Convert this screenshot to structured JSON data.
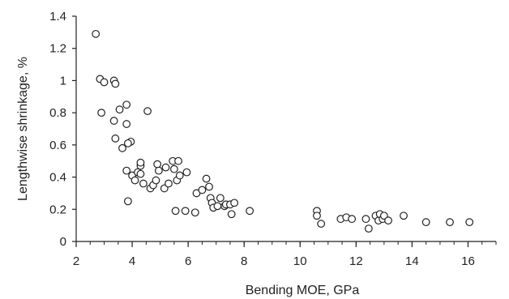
{
  "chart_data": {
    "type": "scatter",
    "title": "",
    "xlabel": "Bending MOE, GPa",
    "ylabel": "Lengthwise shrinkage, %",
    "xlim": [
      2,
      17
    ],
    "ylim": [
      0,
      1.4
    ],
    "xticks": [
      2,
      4,
      6,
      8,
      10,
      12,
      14,
      16
    ],
    "xtick_labels": [
      "2",
      "4",
      "6",
      "8",
      "10",
      "12",
      "14",
      "16"
    ],
    "xminor_step": 0.5,
    "yticks": [
      0,
      0.2,
      0.4,
      0.6,
      0.8,
      1,
      1.2,
      1.4
    ],
    "ytick_labels": [
      "0",
      "0.2",
      "0.4",
      "0.6",
      "0.8",
      "1",
      "1.2",
      "1.4"
    ],
    "grid": false,
    "legend": false,
    "marker": "open-circle",
    "marker_color": "#222222",
    "series": [
      {
        "points": [
          [
            2.7,
            1.29
          ],
          [
            2.85,
            1.01
          ],
          [
            3.0,
            0.99
          ],
          [
            2.9,
            0.8
          ],
          [
            3.35,
            1.0
          ],
          [
            3.4,
            0.98
          ],
          [
            3.35,
            0.75
          ],
          [
            3.55,
            0.82
          ],
          [
            3.8,
            0.85
          ],
          [
            3.4,
            0.64
          ],
          [
            3.65,
            0.58
          ],
          [
            3.8,
            0.73
          ],
          [
            3.95,
            0.62
          ],
          [
            3.85,
            0.61
          ],
          [
            4.55,
            0.81
          ],
          [
            3.8,
            0.44
          ],
          [
            4.0,
            0.41
          ],
          [
            4.3,
            0.47
          ],
          [
            4.3,
            0.49
          ],
          [
            4.2,
            0.43
          ],
          [
            4.4,
            0.36
          ],
          [
            4.3,
            0.42
          ],
          [
            4.1,
            0.38
          ],
          [
            3.85,
            0.25
          ],
          [
            4.65,
            0.33
          ],
          [
            4.75,
            0.35
          ],
          [
            4.85,
            0.38
          ],
          [
            4.9,
            0.48
          ],
          [
            4.95,
            0.44
          ],
          [
            5.15,
            0.33
          ],
          [
            5.2,
            0.46
          ],
          [
            5.3,
            0.36
          ],
          [
            5.45,
            0.5
          ],
          [
            5.5,
            0.45
          ],
          [
            5.6,
            0.38
          ],
          [
            5.7,
            0.41
          ],
          [
            5.65,
            0.5
          ],
          [
            5.95,
            0.43
          ],
          [
            5.55,
            0.19
          ],
          [
            5.9,
            0.19
          ],
          [
            6.25,
            0.18
          ],
          [
            6.3,
            0.3
          ],
          [
            6.5,
            0.32
          ],
          [
            6.65,
            0.39
          ],
          [
            6.75,
            0.34
          ],
          [
            6.8,
            0.27
          ],
          [
            6.85,
            0.24
          ],
          [
            6.9,
            0.21
          ],
          [
            7.05,
            0.22
          ],
          [
            7.15,
            0.27
          ],
          [
            7.3,
            0.22
          ],
          [
            7.35,
            0.23
          ],
          [
            7.5,
            0.23
          ],
          [
            7.55,
            0.17
          ],
          [
            7.65,
            0.24
          ],
          [
            8.2,
            0.19
          ],
          [
            10.6,
            0.19
          ],
          [
            10.6,
            0.16
          ],
          [
            10.75,
            0.11
          ],
          [
            11.45,
            0.14
          ],
          [
            11.65,
            0.15
          ],
          [
            11.85,
            0.14
          ],
          [
            12.35,
            0.14
          ],
          [
            12.45,
            0.08
          ],
          [
            12.7,
            0.16
          ],
          [
            12.8,
            0.13
          ],
          [
            12.85,
            0.17
          ],
          [
            12.95,
            0.14
          ],
          [
            13.0,
            0.16
          ],
          [
            13.15,
            0.13
          ],
          [
            13.7,
            0.16
          ],
          [
            14.5,
            0.12
          ],
          [
            15.35,
            0.12
          ],
          [
            16.05,
            0.12
          ]
        ]
      }
    ]
  }
}
